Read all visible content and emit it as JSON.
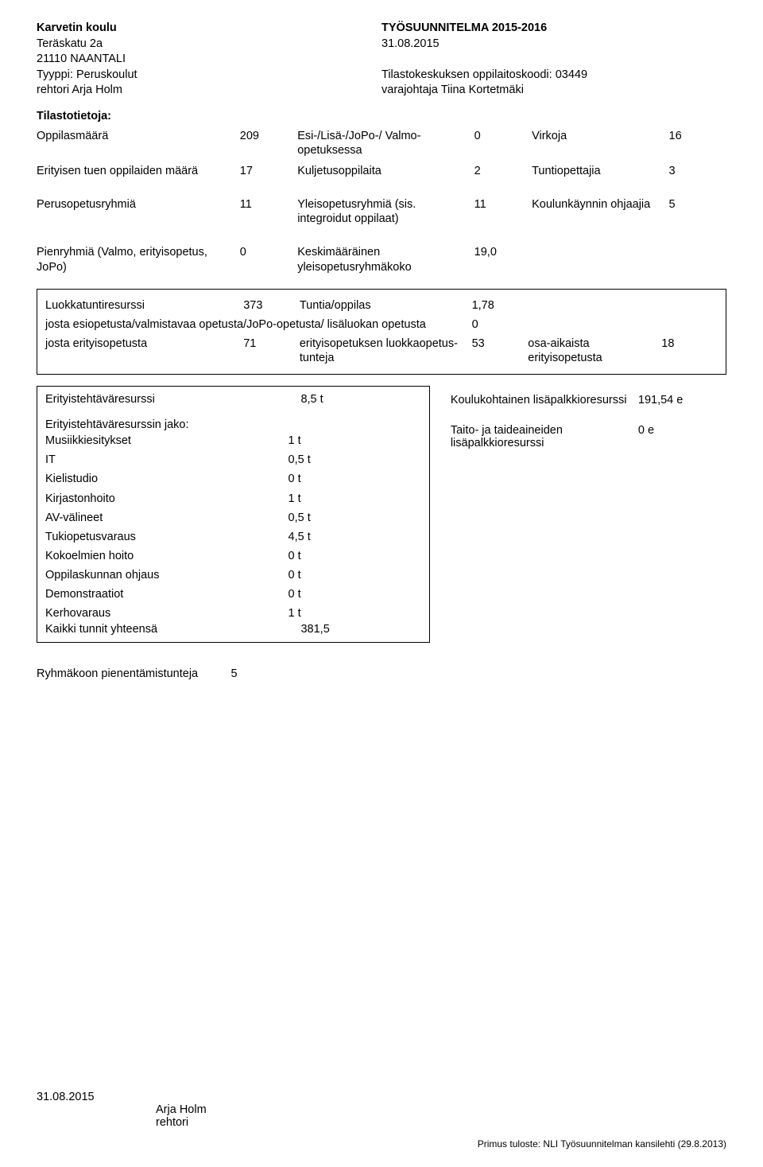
{
  "header": {
    "school": "Karvetin koulu",
    "street": "Teräskatu 2a",
    "postal": "21110 NAANTALI",
    "type_label": "Tyyppi: Peruskoulut",
    "principal": "rehtori Arja Holm",
    "title": "TYÖSUUNNITELMA 2015-2016",
    "date": "31.08.2015",
    "stat_code": "Tilastokeskuksen oppilaitoskoodi: 03449",
    "vice": "varajohtaja Tiina Kortetmäki"
  },
  "section_label": "Tilastotietoja:",
  "block1": {
    "r1": {
      "l1": "Oppilasmäärä",
      "v1": "209",
      "l2": "Esi-/Lisä-/JoPo-/ Valmo-opetuksessa",
      "v2": "0",
      "l3": "Virkoja",
      "v3": "16"
    },
    "r2": {
      "l1": "Erityisen tuen oppilaiden määrä",
      "v1": "17",
      "l2": "Kuljetusoppilaita",
      "v2": "2",
      "l3": "Tuntiopettajia",
      "v3": "3"
    }
  },
  "block2": {
    "r1": {
      "l1": "Perusopetusryhmiä",
      "v1": "11",
      "l2": "Yleisopetusryhmiä (sis. integroidut oppilaat)",
      "v2": "11",
      "l3": "Koulunkäynnin ohjaajia",
      "v3": "5"
    }
  },
  "block3": {
    "r1": {
      "l1": "Pienryhmiä (Valmo, erityisopetus, JoPo)",
      "v1": "0",
      "l2": "Keskimääräinen yleisopetusryhmäkoko",
      "v2": "19,0"
    }
  },
  "box1": {
    "r1": {
      "l1": "Luokkatuntiresurssi",
      "v1": "373",
      "l2": "Tuntia/oppilas",
      "v2": "1,78"
    },
    "r2": {
      "l1": "josta esiopetusta/valmistavaa opetusta/JoPo-opetusta/ lisäluokan opetusta",
      "v1": "0"
    },
    "r3": {
      "l1": "josta erityisopetusta",
      "v1": "71",
      "l2": "erityisopetuksen luokkaopetus-tunteja",
      "v2": "53",
      "l3": "osa-aikaista erityisopetusta",
      "v3": "18"
    }
  },
  "box2": {
    "r1": {
      "label": "Erityistehtäväresurssi",
      "value": "8,5 t"
    },
    "heading": "Erityistehtäväresurssin jako:",
    "rows": [
      {
        "label": "Musiikkiesitykset",
        "value": "1 t"
      },
      {
        "label": "IT",
        "value": "0,5 t"
      },
      {
        "label": "Kielistudio",
        "value": "0 t"
      },
      {
        "label": "Kirjastonhoito",
        "value": "1 t"
      },
      {
        "label": "AV-välineet",
        "value": "0,5 t"
      },
      {
        "label": "Tukiopetusvaraus",
        "value": "4,5 t"
      },
      {
        "label": "Kokoelmien hoito",
        "value": "0 t"
      },
      {
        "label": "Oppilaskunnan ohjaus",
        "value": "0 t"
      },
      {
        "label": "Demonstraatiot",
        "value": "0 t"
      },
      {
        "label": "Kerhovaraus",
        "value": "1 t"
      }
    ],
    "total": {
      "label": "Kaikki tunnit yhteensä",
      "value": "381,5"
    },
    "side": [
      {
        "label": "Koulukohtainen lisäpalkkioresurssi",
        "value": "191,54 e"
      },
      {
        "label": "Taito- ja taideaineiden lisäpalkkioresurssi",
        "value": "0 e"
      }
    ]
  },
  "groupsize": {
    "label": "Ryhmäkoon pienentämistunteja",
    "value": "5"
  },
  "footer": {
    "date": "31.08.2015",
    "sign_name": "Arja Holm",
    "sign_title": "rehtori",
    "print": "Primus tuloste: NLI Työsuunnitelman kansilehti (29.8.2013)"
  }
}
